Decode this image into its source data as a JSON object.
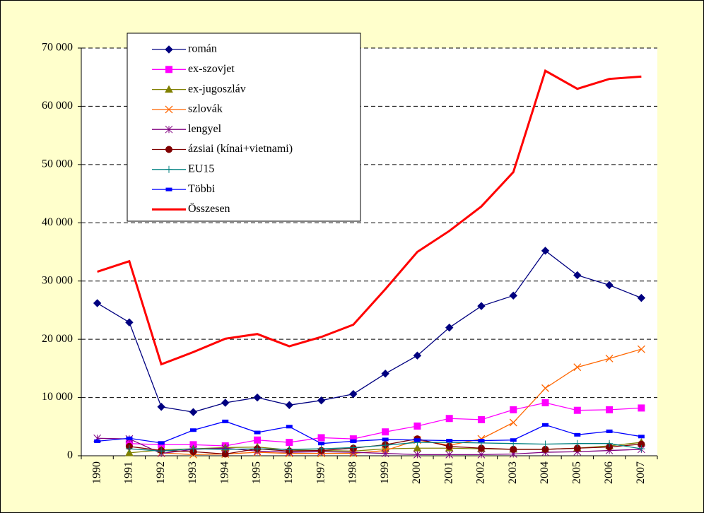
{
  "chart_data": {
    "type": "line",
    "categories": [
      "1990",
      "1991",
      "1992",
      "1993",
      "1994",
      "1995",
      "1996",
      "1997",
      "1998",
      "1999",
      "2000",
      "2001",
      "2002",
      "2003",
      "2004",
      "2005",
      "2006",
      "2007"
    ],
    "series": [
      {
        "name": "román",
        "color": "#000080",
        "marker": "diamond",
        "values": [
          26200,
          22900,
          8400,
          7500,
          9100,
          10000,
          8700,
          9500,
          10600,
          14100,
          17200,
          22000,
          25700,
          27500,
          35200,
          31000,
          29300,
          27100
        ]
      },
      {
        "name": "ex-szovjet",
        "color": "#ff00ff",
        "marker": "square",
        "values": [
          null,
          2100,
          1900,
          1900,
          1700,
          2700,
          2300,
          3100,
          2900,
          4100,
          5100,
          6400,
          6200,
          7900,
          9100,
          7800,
          7900,
          8200
        ]
      },
      {
        "name": "ex-jugoszláv",
        "color": "#808000",
        "marker": "triangle",
        "values": [
          null,
          500,
          1000,
          1200,
          1400,
          1500,
          1000,
          900,
          800,
          1200,
          1300,
          1300,
          1200,
          1100,
          1100,
          1300,
          1700,
          2300
        ]
      },
      {
        "name": "szlovák",
        "color": "#ff6600",
        "marker": "x",
        "values": [
          null,
          null,
          500,
          200,
          300,
          600,
          400,
          400,
          400,
          900,
          2700,
          1800,
          2900,
          5700,
          11600,
          15200,
          16700,
          18300
        ]
      },
      {
        "name": "lengyel",
        "color": "#800080",
        "marker": "star",
        "values": [
          3000,
          2900,
          400,
          1100,
          1300,
          800,
          600,
          700,
          600,
          400,
          200,
          200,
          200,
          300,
          600,
          700,
          900,
          1100
        ]
      },
      {
        "name": "ázsiai (kínai+vietnami)",
        "color": "#800000",
        "marker": "circle",
        "values": [
          null,
          1600,
          900,
          700,
          300,
          1200,
          800,
          900,
          1300,
          1900,
          2900,
          1600,
          1300,
          1100,
          1100,
          1300,
          1500,
          2000
        ]
      },
      {
        "name": "EU15",
        "color": "#008080",
        "marker": "plus",
        "values": [
          null,
          1200,
          800,
          1200,
          1100,
          1200,
          1100,
          1200,
          1400,
          1800,
          2300,
          2300,
          2200,
          2100,
          2000,
          2100,
          2100,
          1200
        ]
      },
      {
        "name": "Többi",
        "color": "#0000ff",
        "marker": "dash",
        "values": [
          2500,
          3000,
          2200,
          4400,
          5900,
          4000,
          5000,
          2100,
          2500,
          2800,
          2700,
          2600,
          2600,
          2700,
          5300,
          3600,
          4200,
          3300
        ]
      },
      {
        "name": "Összesen",
        "color": "#ff0000",
        "marker": "none",
        "values": [
          31600,
          33400,
          15700,
          17800,
          20100,
          20900,
          18800,
          20400,
          22500,
          28600,
          35000,
          38600,
          42800,
          48700,
          66100,
          63000,
          64700,
          65100
        ]
      }
    ],
    "ylim": [
      0,
      70000
    ],
    "yticks": [
      0,
      {
        "value": 10000,
        "label": "10 000"
      },
      {
        "value": 20000,
        "label": "20 000"
      },
      {
        "value": 30000,
        "label": "30 000"
      },
      {
        "value": 40000,
        "label": "40 000"
      },
      {
        "value": 50000,
        "label": "50 000"
      },
      {
        "value": 60000,
        "label": "60 000"
      },
      {
        "value": 70000,
        "label": "70 000"
      }
    ],
    "grid": true,
    "legend": "top-left"
  }
}
